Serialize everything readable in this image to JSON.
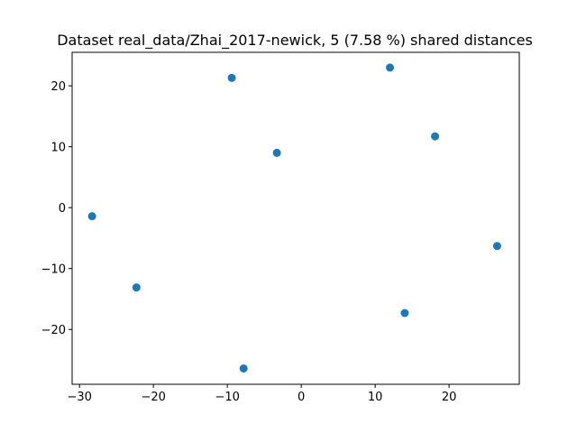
{
  "chart_data": {
    "type": "scatter",
    "title": "Dataset real_data/Zhai_2017-newick, 5 (7.58 %) shared distances",
    "xlabel": "",
    "ylabel": "",
    "xlim": [
      -31,
      29.5
    ],
    "ylim": [
      -29,
      25.5
    ],
    "xticks": [
      -30,
      -20,
      -10,
      0,
      10,
      20
    ],
    "yticks": [
      -20,
      -10,
      0,
      10,
      20
    ],
    "xtick_labels": [
      "−30",
      "−20",
      "−10",
      "0",
      "10",
      "20"
    ],
    "ytick_labels": [
      "−20",
      "−10",
      "0",
      "10",
      "20"
    ],
    "grid": false,
    "marker_color": "#1f77b4",
    "points": [
      {
        "x": -28.3,
        "y": -1.4
      },
      {
        "x": -22.3,
        "y": -13.1
      },
      {
        "x": -9.4,
        "y": 21.3
      },
      {
        "x": -3.3,
        "y": 9.0
      },
      {
        "x": -7.8,
        "y": -26.4
      },
      {
        "x": 12.0,
        "y": 23.0
      },
      {
        "x": 18.1,
        "y": 11.7
      },
      {
        "x": 14.0,
        "y": -17.3
      },
      {
        "x": 26.5,
        "y": -6.3
      }
    ]
  }
}
